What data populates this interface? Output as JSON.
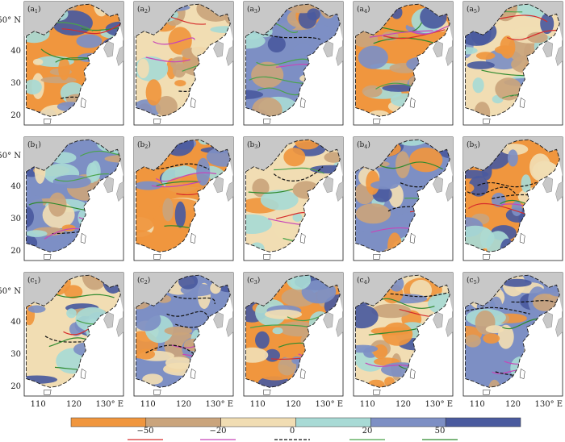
{
  "figure": {
    "row_letters": [
      "a",
      "b",
      "c"
    ],
    "col_numbers": [
      "1",
      "2",
      "3",
      "4",
      "5"
    ],
    "panels": [
      {
        "id": "a1",
        "letter": "a",
        "num": "1"
      },
      {
        "id": "a2",
        "letter": "a",
        "num": "2"
      },
      {
        "id": "a3",
        "letter": "a",
        "num": "3"
      },
      {
        "id": "a4",
        "letter": "a",
        "num": "4"
      },
      {
        "id": "a5",
        "letter": "a",
        "num": "5"
      },
      {
        "id": "b1",
        "letter": "b",
        "num": "1"
      },
      {
        "id": "b2",
        "letter": "b",
        "num": "2"
      },
      {
        "id": "b3",
        "letter": "b",
        "num": "3"
      },
      {
        "id": "b4",
        "letter": "b",
        "num": "4"
      },
      {
        "id": "b5",
        "letter": "b",
        "num": "5"
      },
      {
        "id": "c1",
        "letter": "c",
        "num": "1"
      },
      {
        "id": "c2",
        "letter": "c",
        "num": "2"
      },
      {
        "id": "c3",
        "letter": "c",
        "num": "3"
      },
      {
        "id": "c4",
        "letter": "c",
        "num": "4"
      },
      {
        "id": "c5",
        "letter": "c",
        "num": "5"
      }
    ],
    "lat_ticks": [
      "50° N",
      "40",
      "30",
      "20"
    ],
    "lon_ticks": [
      "110",
      "120",
      "130° E"
    ]
  },
  "colorbar": {
    "colors": [
      "#f0963e",
      "#caa47c",
      "#f1ddb3",
      "#a8dad5",
      "#7d8fc4",
      "#4a5a9e"
    ]
  },
  "legend": {
    "items": [
      {
        "label": "−50",
        "color": "#d62c2c",
        "style": "solid"
      },
      {
        "label": "−20",
        "color": "#c845b8",
        "style": "solid"
      },
      {
        "label": "0",
        "color": "#111111",
        "style": "dashed"
      },
      {
        "label": "20",
        "color": "#4aa34a",
        "style": "solid"
      },
      {
        "label": "50",
        "color": "#2d8a2d",
        "style": "solid"
      }
    ]
  },
  "colors": {
    "land": "#c8c8c8",
    "sea": "#ffffff",
    "border": "#1a1a1a"
  }
}
